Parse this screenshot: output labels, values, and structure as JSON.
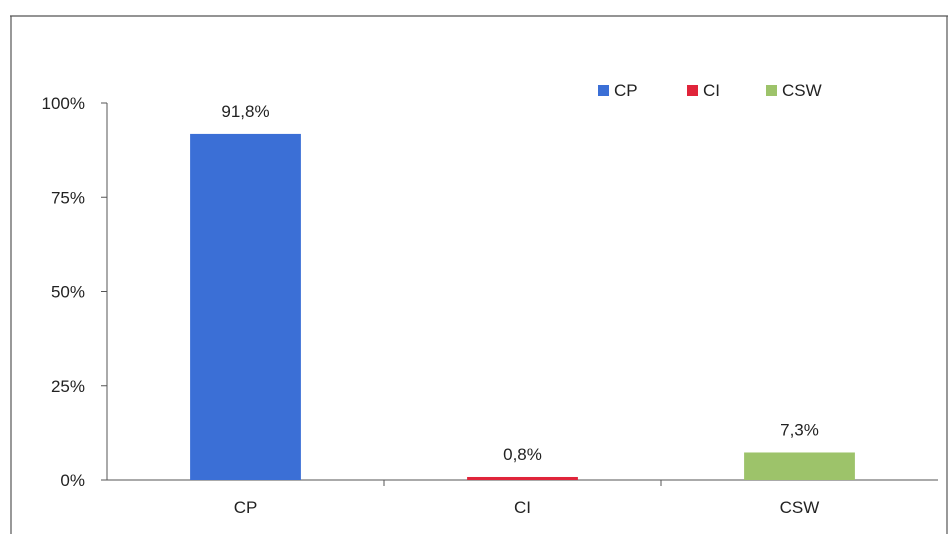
{
  "chart_data": {
    "type": "bar",
    "categories": [
      "CP",
      "CI",
      "CSW"
    ],
    "values": [
      91.8,
      0.8,
      7.3
    ],
    "data_labels": [
      "91,8%",
      "0,8%",
      "7,3%"
    ],
    "y_ticks": [
      "0%",
      "25%",
      "50%",
      "75%",
      "100%"
    ],
    "ylim": [
      0,
      100
    ],
    "grid": false,
    "legend_position": "top-right",
    "legend": [
      {
        "name": "CP",
        "color": "#3b6fd6"
      },
      {
        "name": "CI",
        "color": "#e0243a"
      },
      {
        "name": "CSW",
        "color": "#9dc36a"
      }
    ],
    "colors": [
      "#3b6fd6",
      "#e0243a",
      "#9dc36a"
    ]
  }
}
